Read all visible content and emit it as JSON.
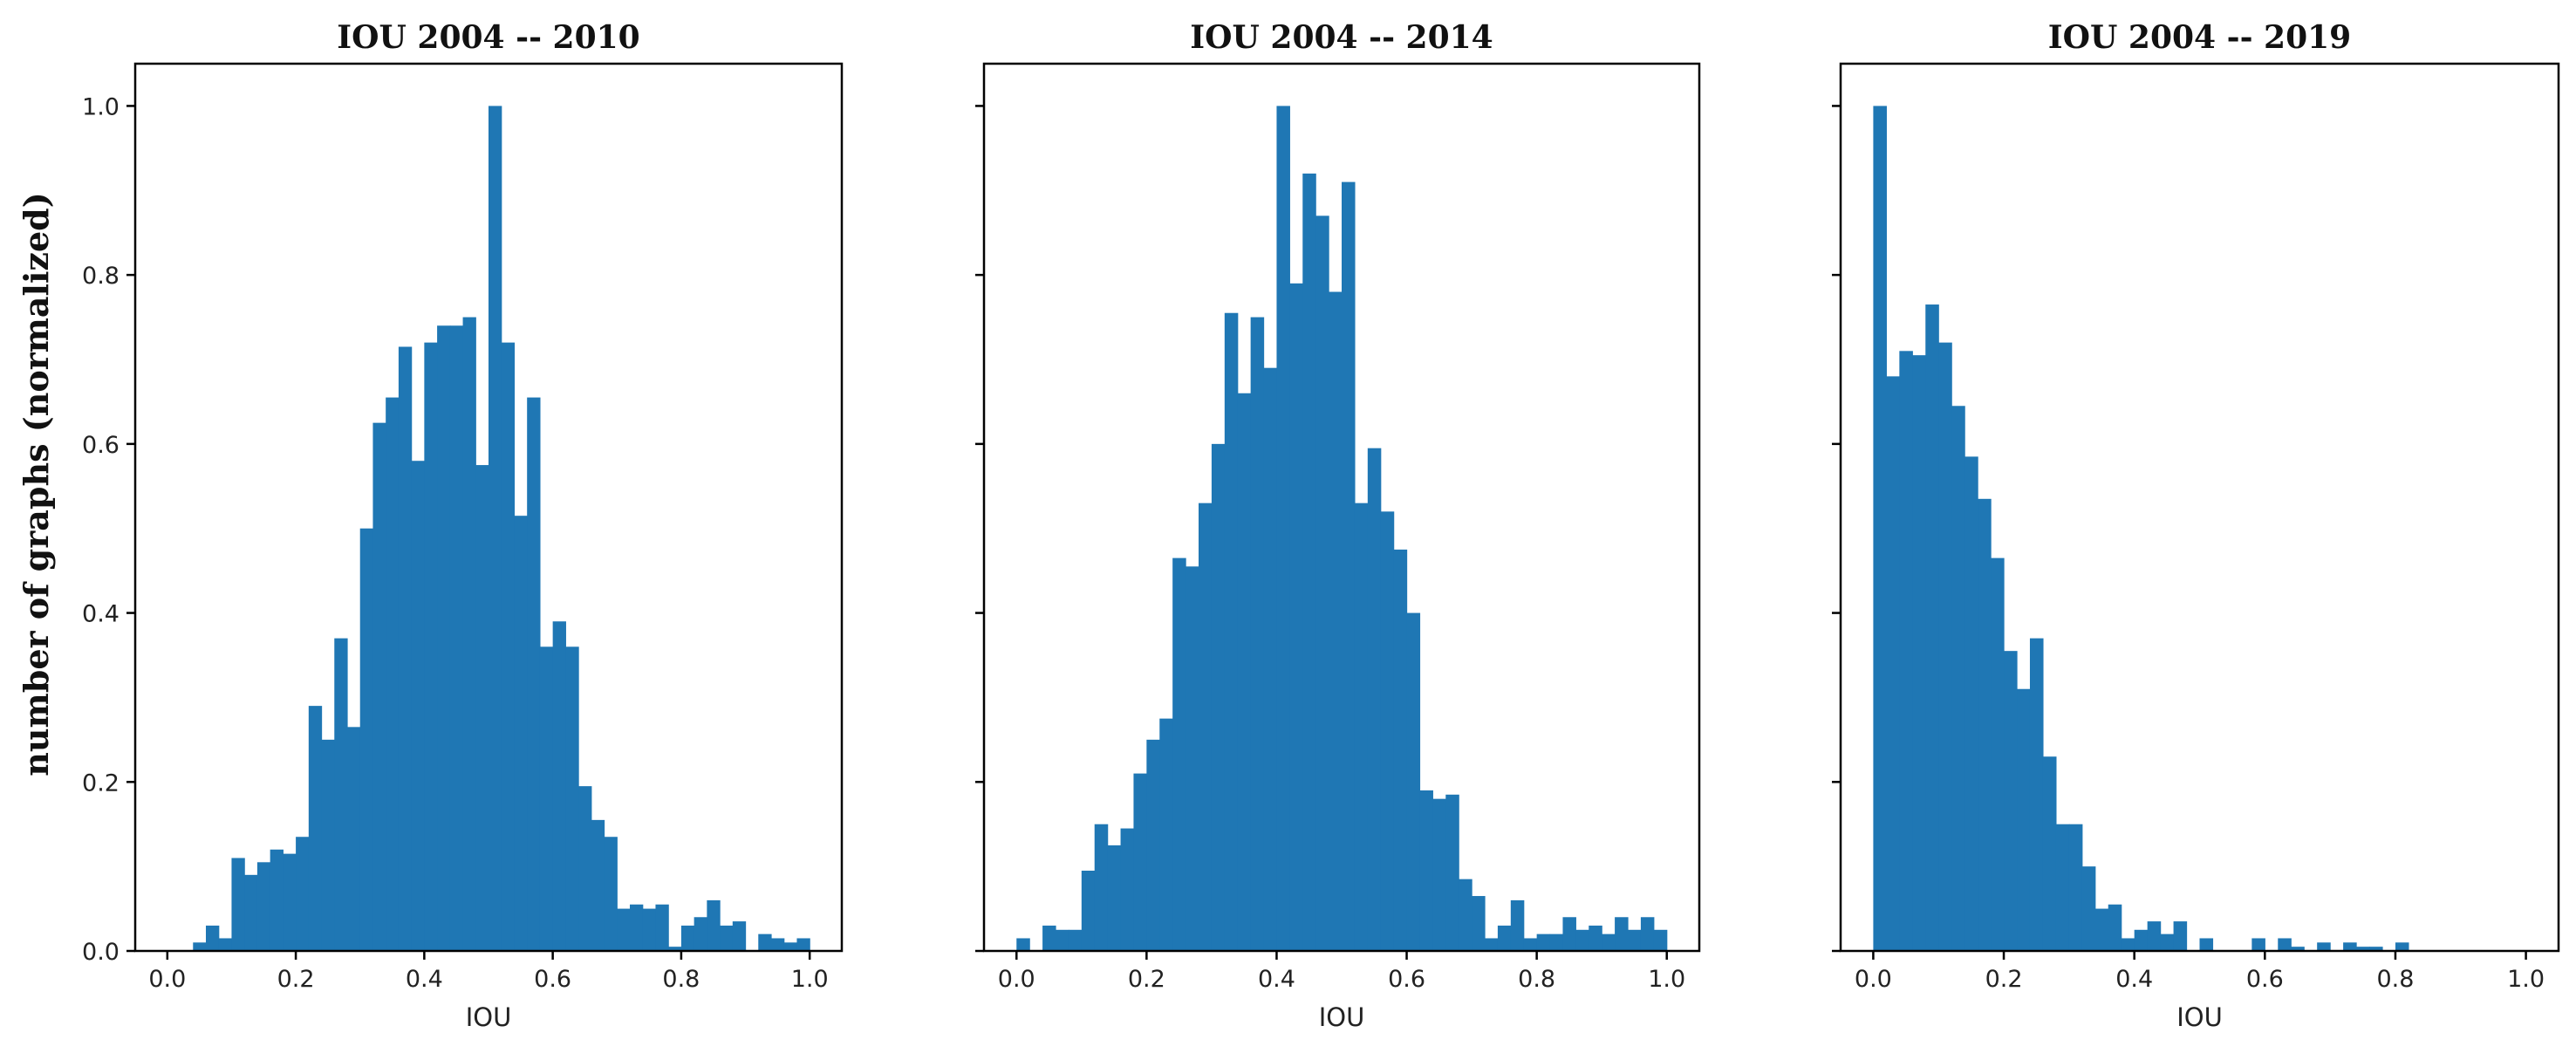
{
  "colors": {
    "bar": "#1f77b4",
    "axes": "#000000",
    "background": "#ffffff"
  },
  "chart_data": [
    {
      "type": "bar",
      "title": "IOU 2004 -- 2010",
      "xlabel": "IOU",
      "ylabel": "number of graphs (normalized)",
      "xlim": [
        -0.05,
        1.05
      ],
      "ylim": [
        0,
        1.05
      ],
      "xticks": [
        "0.0",
        "0.2",
        "0.4",
        "0.6",
        "0.8",
        "1.0"
      ],
      "yticks": [
        "0.0",
        "0.2",
        "0.4",
        "0.6",
        "0.8",
        "1.0"
      ],
      "grid": false,
      "bin_width": 0.02,
      "bin_starts": [
        0.04,
        0.06,
        0.08,
        0.1,
        0.12,
        0.14,
        0.16,
        0.18,
        0.2,
        0.22,
        0.24,
        0.26,
        0.28,
        0.3,
        0.32,
        0.34,
        0.36,
        0.38,
        0.4,
        0.42,
        0.44,
        0.46,
        0.48,
        0.5,
        0.52,
        0.54,
        0.56,
        0.58,
        0.6,
        0.62,
        0.64,
        0.66,
        0.68,
        0.7,
        0.72,
        0.74,
        0.76,
        0.78,
        0.8,
        0.82,
        0.84,
        0.86,
        0.88,
        0.9,
        0.92,
        0.94,
        0.96,
        0.98
      ],
      "values": [
        0.01,
        0.03,
        0.015,
        0.11,
        0.09,
        0.105,
        0.12,
        0.115,
        0.135,
        0.29,
        0.25,
        0.37,
        0.265,
        0.5,
        0.625,
        0.655,
        0.715,
        0.58,
        0.72,
        0.74,
        0.74,
        0.75,
        0.575,
        1.0,
        0.72,
        0.515,
        0.655,
        0.36,
        0.39,
        0.36,
        0.195,
        0.155,
        0.135,
        0.05,
        0.055,
        0.05,
        0.055,
        0.005,
        0.03,
        0.04,
        0.06,
        0.03,
        0.035,
        0.0,
        0.02,
        0.015,
        0.01,
        0.015
      ]
    },
    {
      "type": "bar",
      "title": "IOU 2004 -- 2014",
      "xlabel": "IOU",
      "ylabel": "",
      "xlim": [
        -0.05,
        1.05
      ],
      "ylim": [
        0,
        1.05
      ],
      "xticks": [
        "0.0",
        "0.2",
        "0.4",
        "0.6",
        "0.8",
        "1.0"
      ],
      "yticks": [
        "0.0",
        "0.2",
        "0.4",
        "0.6",
        "0.8",
        "1.0"
      ],
      "grid": false,
      "bin_width": 0.02,
      "bin_starts": [
        0.0,
        0.02,
        0.04,
        0.06,
        0.08,
        0.1,
        0.12,
        0.14,
        0.16,
        0.18,
        0.2,
        0.22,
        0.24,
        0.26,
        0.28,
        0.3,
        0.32,
        0.34,
        0.36,
        0.38,
        0.4,
        0.42,
        0.44,
        0.46,
        0.48,
        0.5,
        0.52,
        0.54,
        0.56,
        0.58,
        0.6,
        0.62,
        0.64,
        0.66,
        0.68,
        0.7,
        0.72,
        0.74,
        0.76,
        0.78,
        0.8,
        0.82,
        0.84,
        0.86,
        0.88,
        0.9,
        0.92,
        0.94,
        0.96,
        0.98
      ],
      "values": [
        0.015,
        0.0,
        0.03,
        0.025,
        0.025,
        0.095,
        0.15,
        0.125,
        0.145,
        0.21,
        0.25,
        0.275,
        0.465,
        0.455,
        0.53,
        0.6,
        0.755,
        0.66,
        0.75,
        0.69,
        1.0,
        0.79,
        0.92,
        0.87,
        0.78,
        0.91,
        0.53,
        0.595,
        0.52,
        0.475,
        0.4,
        0.19,
        0.18,
        0.185,
        0.085,
        0.065,
        0.015,
        0.03,
        0.06,
        0.015,
        0.02,
        0.02,
        0.04,
        0.025,
        0.03,
        0.02,
        0.04,
        0.025,
        0.04,
        0.025
      ]
    },
    {
      "type": "bar",
      "title": "IOU 2004 -- 2019",
      "xlabel": "IOU",
      "ylabel": "",
      "xlim": [
        -0.05,
        1.05
      ],
      "ylim": [
        0,
        1.05
      ],
      "xticks": [
        "0.0",
        "0.2",
        "0.4",
        "0.6",
        "0.8",
        "1.0"
      ],
      "yticks": [
        "0.0",
        "0.2",
        "0.4",
        "0.6",
        "0.8",
        "1.0"
      ],
      "grid": false,
      "bin_width": 0.02,
      "bin_starts": [
        0.0,
        0.02,
        0.04,
        0.06,
        0.08,
        0.1,
        0.12,
        0.14,
        0.16,
        0.18,
        0.2,
        0.22,
        0.24,
        0.26,
        0.28,
        0.3,
        0.32,
        0.34,
        0.36,
        0.38,
        0.4,
        0.42,
        0.44,
        0.46,
        0.48,
        0.5,
        0.52,
        0.54,
        0.56,
        0.58,
        0.6,
        0.62,
        0.64,
        0.66,
        0.68,
        0.7,
        0.72,
        0.74,
        0.76,
        0.78,
        0.8
      ],
      "values": [
        1.0,
        0.68,
        0.71,
        0.705,
        0.765,
        0.72,
        0.645,
        0.585,
        0.535,
        0.465,
        0.355,
        0.31,
        0.37,
        0.23,
        0.15,
        0.15,
        0.1,
        0.05,
        0.055,
        0.015,
        0.025,
        0.035,
        0.02,
        0.035,
        0.0,
        0.015,
        0.0,
        0.0,
        0.0,
        0.015,
        0.0,
        0.015,
        0.005,
        0.0,
        0.01,
        0.0,
        0.01,
        0.005,
        0.005,
        0.0,
        0.01
      ]
    }
  ]
}
